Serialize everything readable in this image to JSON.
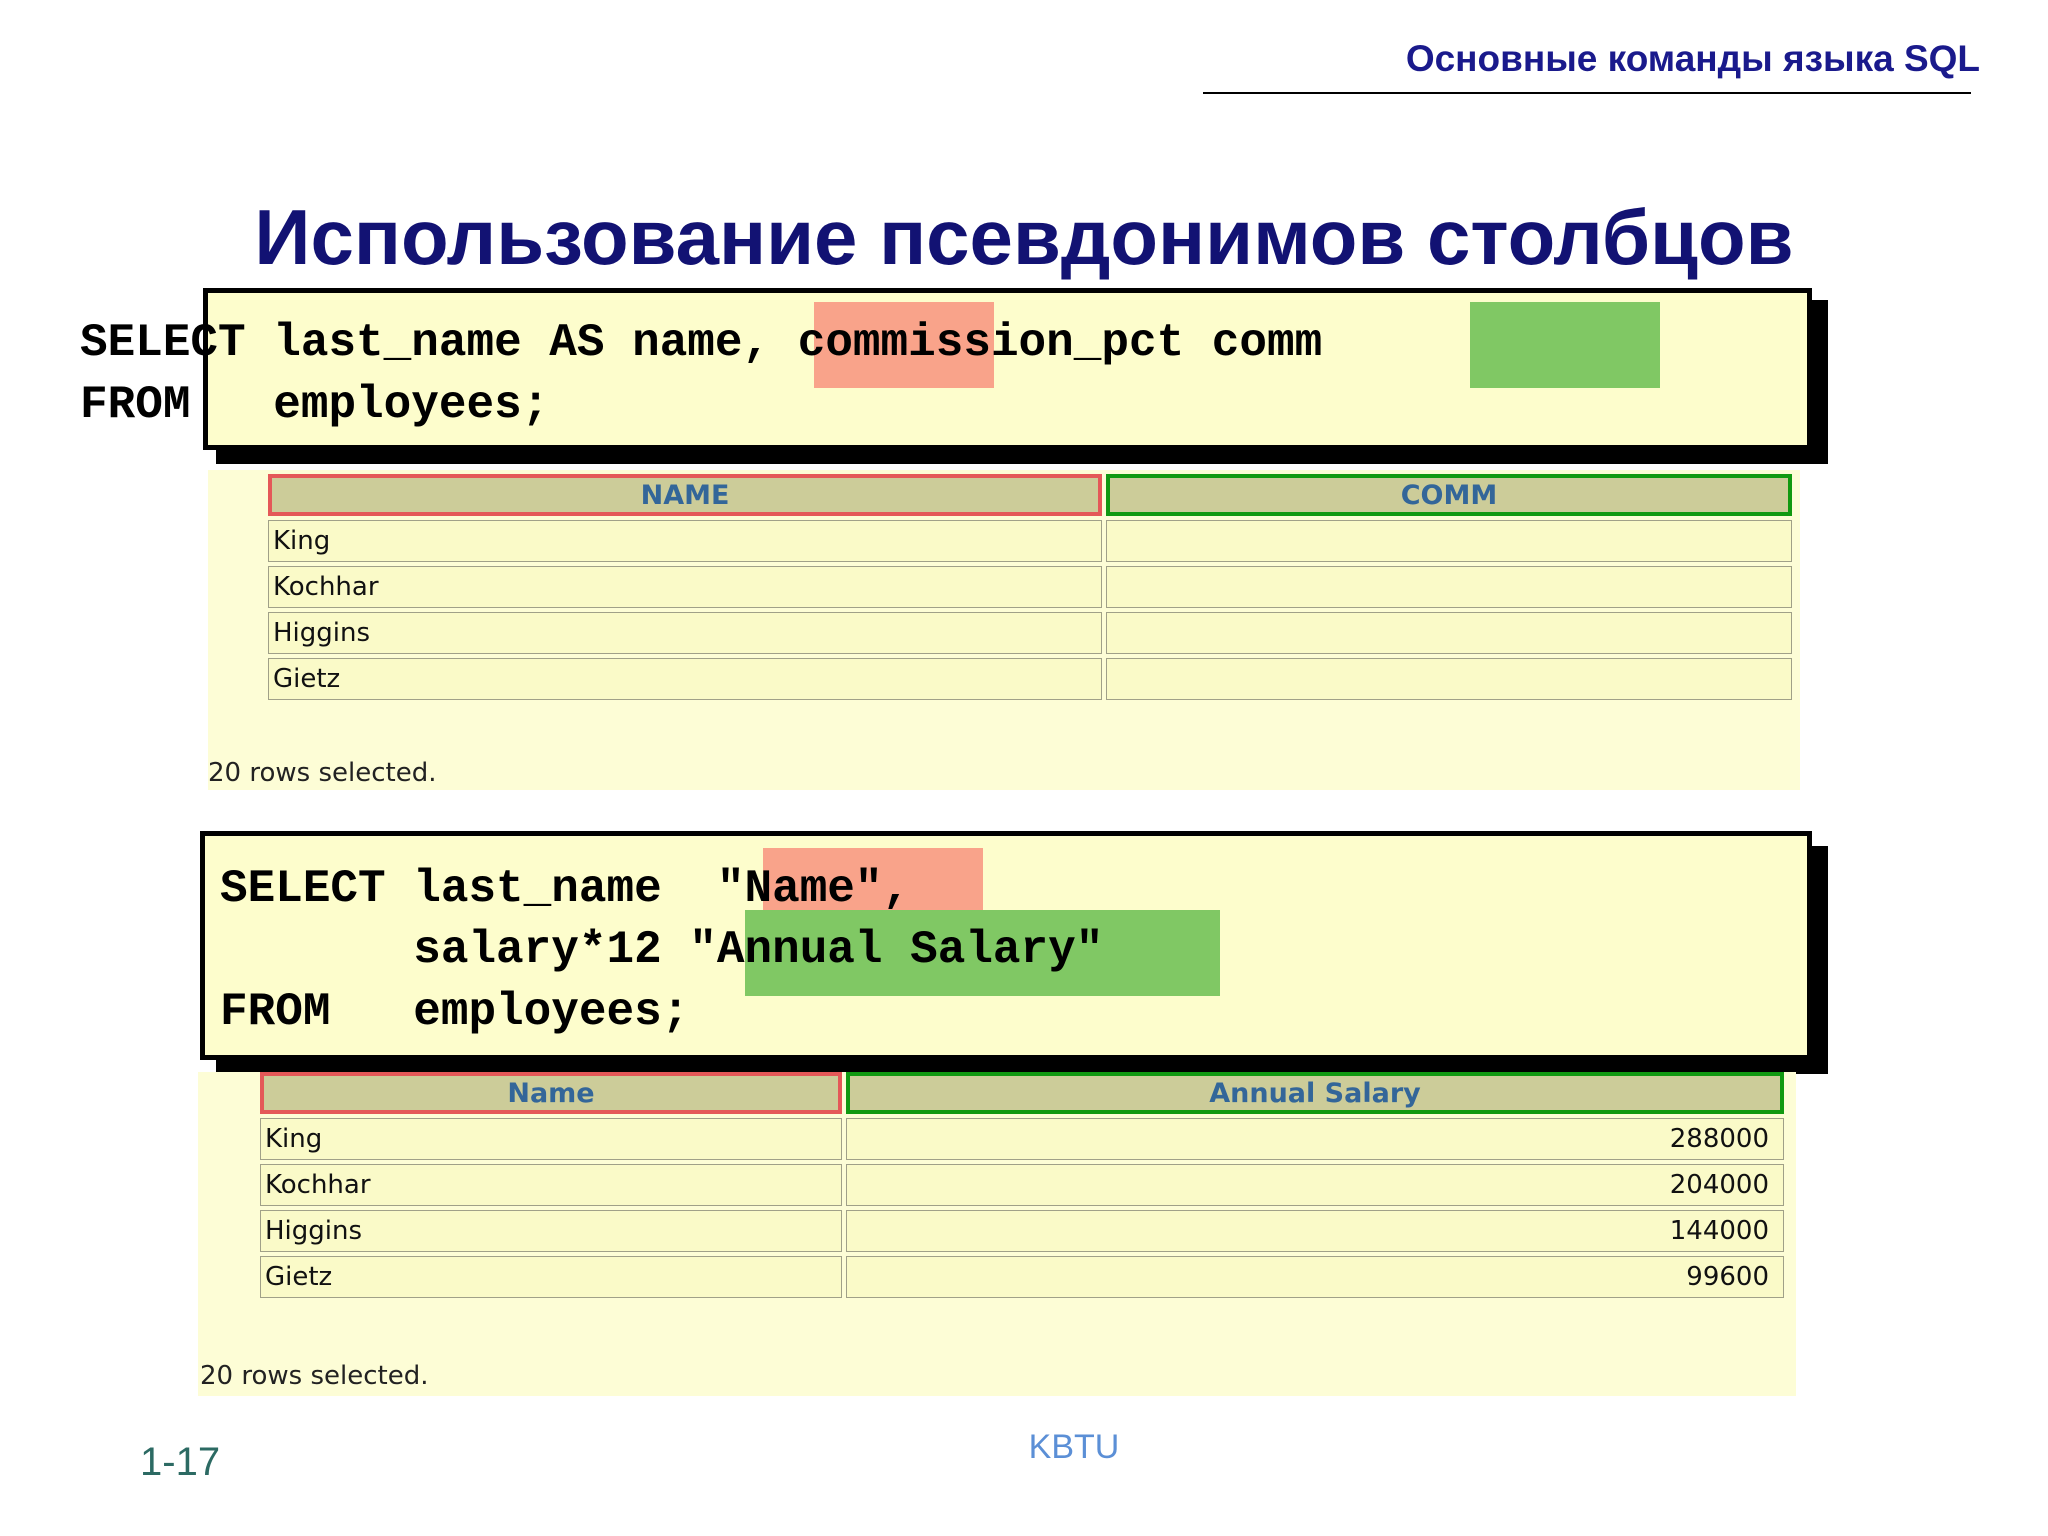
{
  "header": {
    "title": "Основные команды языка SQL"
  },
  "slide": {
    "title": "Использование псевдонимов столбцов"
  },
  "example1": {
    "code_lines": [
      "SELECT last_name AS name, commission_pct comm",
      "FROM   employees;"
    ],
    "columns": [
      "NAME",
      "COMM"
    ],
    "rows": [
      [
        "King",
        ""
      ],
      [
        "Kochhar",
        ""
      ],
      [
        "Higgins",
        ""
      ],
      [
        "Gietz",
        ""
      ]
    ],
    "rows_note": "20 rows selected."
  },
  "example2": {
    "code_lines": [
      "SELECT last_name  \"Name\",",
      "       salary*12 \"Annual Salary\"",
      "FROM   employees;"
    ],
    "columns": [
      "Name",
      "Annual Salary"
    ],
    "rows": [
      [
        "King",
        "288000"
      ],
      [
        "Kochhar",
        "204000"
      ],
      [
        "Higgins",
        "144000"
      ],
      [
        "Gietz",
        "99600"
      ]
    ],
    "rows_note": "20 rows selected."
  },
  "footer": {
    "center": "KBTU",
    "slide_number": "1-17"
  },
  "colors": {
    "highlight_red": "#f9a38a",
    "highlight_green": "#80c864",
    "header_blue": "#1a1a8c",
    "box_fill": "#fdfdcc"
  }
}
